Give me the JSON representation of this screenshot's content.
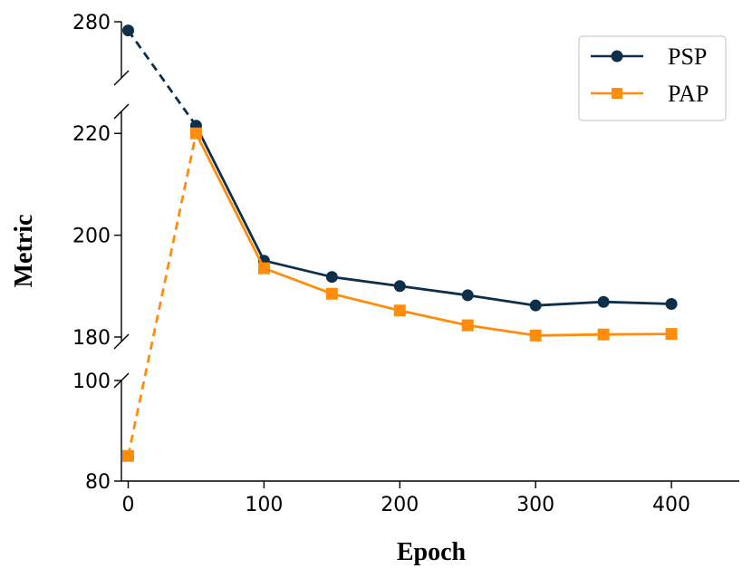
{
  "chart_data": {
    "type": "line",
    "xlabel": "Epoch",
    "ylabel": "Metric",
    "x": [
      0,
      50,
      100,
      150,
      200,
      250,
      300,
      350,
      400
    ],
    "x_ticks": [
      "0",
      "100",
      "200",
      "300",
      "400"
    ],
    "xlim": [
      -5,
      450
    ],
    "y_axis": "broken",
    "y_segments": [
      {
        "range": [
          80,
          100
        ],
        "ticks": [
          80,
          100
        ]
      },
      {
        "range": [
          180,
          222
        ],
        "ticks": [
          180,
          200,
          220
        ]
      },
      {
        "range": [
          258,
          280
        ],
        "ticks": [
          280
        ]
      }
    ],
    "legend_position": "top-right",
    "series": [
      {
        "name": "PSP",
        "color": "#0d2f4a",
        "marker": "circle",
        "values": [
          278,
          221.5,
          195,
          191.8,
          190,
          188.2,
          186.2,
          186.9,
          186.5
        ],
        "dashed_first_segment": true
      },
      {
        "name": "PAP",
        "color": "#ff8c0a",
        "marker": "square",
        "values": [
          85,
          220,
          193.5,
          188.5,
          185.2,
          182.3,
          180.3,
          180.5,
          180.6
        ],
        "dashed_first_segment": true
      }
    ]
  }
}
